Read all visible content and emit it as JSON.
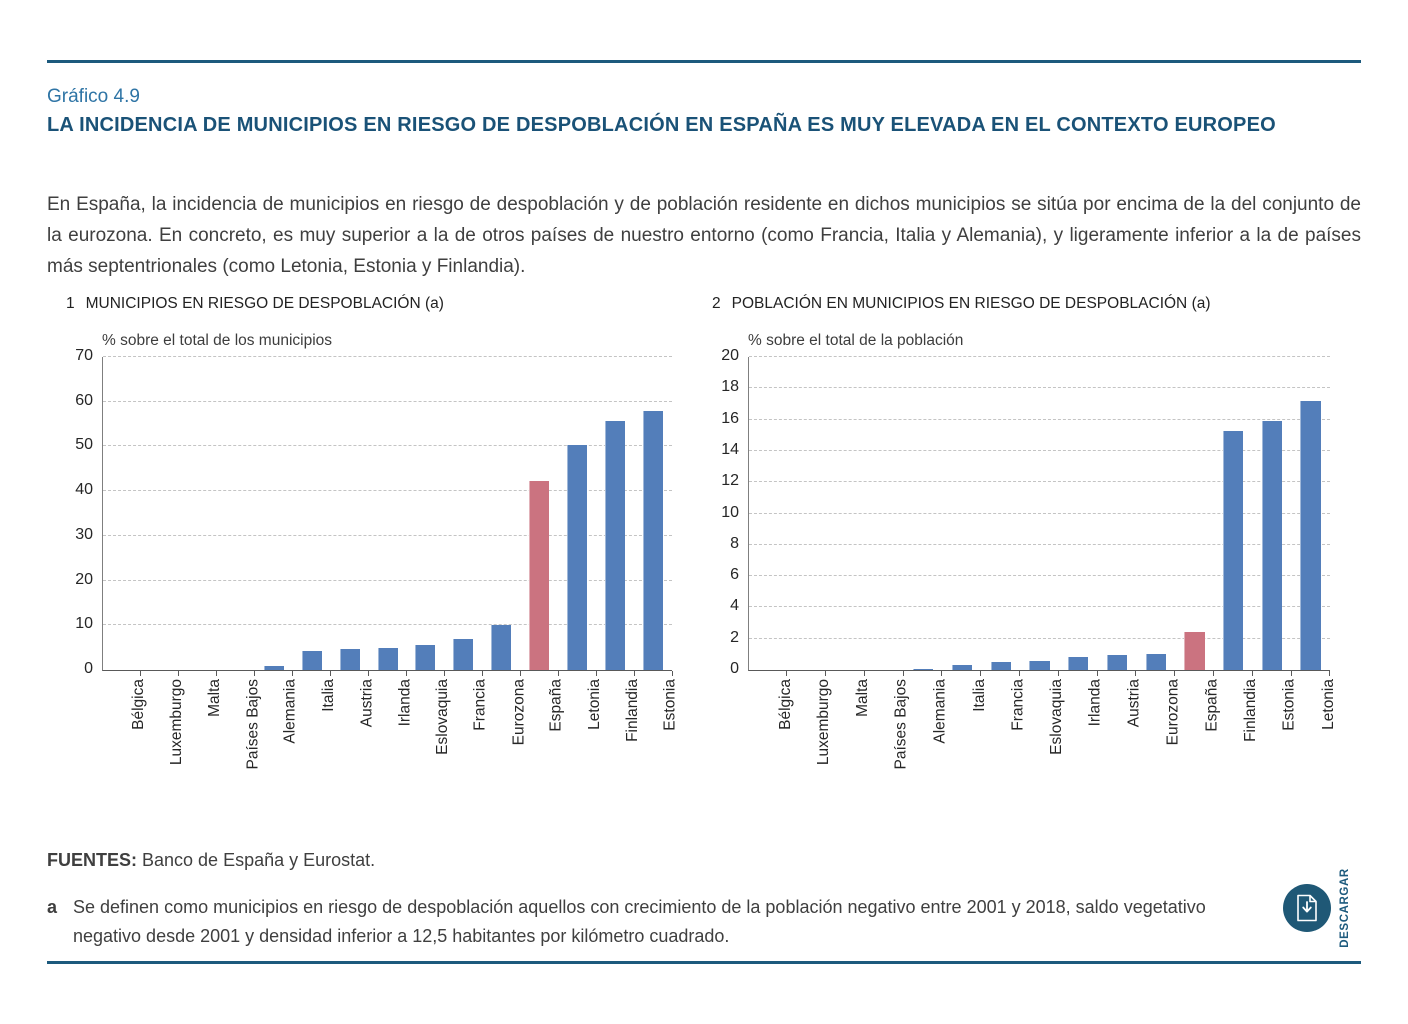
{
  "page": {
    "figure_label": "Gráfico 4.9",
    "title": "LA INCIDENCIA DE MUNICIPIOS EN RIESGO DE DESPOBLACIÓN EN ESPAÑA ES MUY ELEVADA EN EL CONTEXTO EUROPEO",
    "intro": "En España, la incidencia de municipios en riesgo de despoblación y de población residente en dichos municipios se sitúa por encima de la del conjunto de la eurozona. En concreto, es muy superior a la de otros países de nuestro entorno (como Francia, Italia y Alemania), y ligeramente inferior a la de países más septentrionales (como Letonia, Estonia y Finlandia).",
    "sources_label": "FUENTES:",
    "sources_text": " Banco de España y Eurostat.",
    "footnote_marker": "a",
    "footnote_text": "Se definen como municipios en riesgo de despoblación aquellos con crecimiento de la población negativo entre 2001 y 2018, saldo vegetativo negativo desde 2001 y densidad inferior a 12,5 habitantes por kilómetro cuadrado.",
    "download_label": "DESCARGAR"
  },
  "colors": {
    "accent_blue": "#1c5a7d",
    "heading_blue": "#1a5277",
    "figure_label_blue": "#2e74a5",
    "bar_blue": "#537EBA",
    "bar_red": "#CB7380",
    "gridline": "#c4c4c4",
    "body_text": "#3f3f3f"
  },
  "chart_data": [
    {
      "type": "bar",
      "number": "1",
      "title": "MUNICIPIOS EN RIESGO DE DESPOBLACIÓN",
      "title_suffix": "(a)",
      "ylabel": "% sobre el total de los municipios",
      "categories": [
        "Bélgica",
        "Luxemburgo",
        "Malta",
        "Países Bajos",
        "Alemania",
        "Italia",
        "Austria",
        "Irlanda",
        "Eslovaquia",
        "Francia",
        "Eurozona",
        "España",
        "Letonia",
        "Finlandia",
        "Estonia"
      ],
      "values": [
        0,
        0,
        0,
        0,
        1.0,
        4.2,
        4.6,
        4.9,
        5.6,
        7.0,
        10.1,
        42.3,
        50.4,
        55.6,
        58.0
      ],
      "highlight_category": "España",
      "ylim": [
        0,
        70
      ],
      "ytick_step": 10,
      "grid": "horizontal-dashed",
      "legend": "none"
    },
    {
      "type": "bar",
      "number": "2",
      "title": "POBLACIÓN EN MUNICIPIOS EN RIESGO DE DESPOBLACIÓN",
      "title_suffix": "(a)",
      "ylabel": "% sobre el total de la población",
      "categories": [
        "Bélgica",
        "Luxemburgo",
        "Malta",
        "Países Bajos",
        "Alemania",
        "Italia",
        "Francia",
        "Eslovaquia",
        "Irlanda",
        "Austria",
        "Eurozona",
        "España",
        "Finlandia",
        "Estonia",
        "Letonia"
      ],
      "values": [
        0,
        0,
        0,
        0,
        0.07,
        0.3,
        0.5,
        0.6,
        0.8,
        0.95,
        1.0,
        2.4,
        15.3,
        15.9,
        17.2
      ],
      "highlight_category": "España",
      "ylim": [
        0,
        20
      ],
      "ytick_step": 2,
      "grid": "horizontal-dashed",
      "legend": "none"
    }
  ]
}
